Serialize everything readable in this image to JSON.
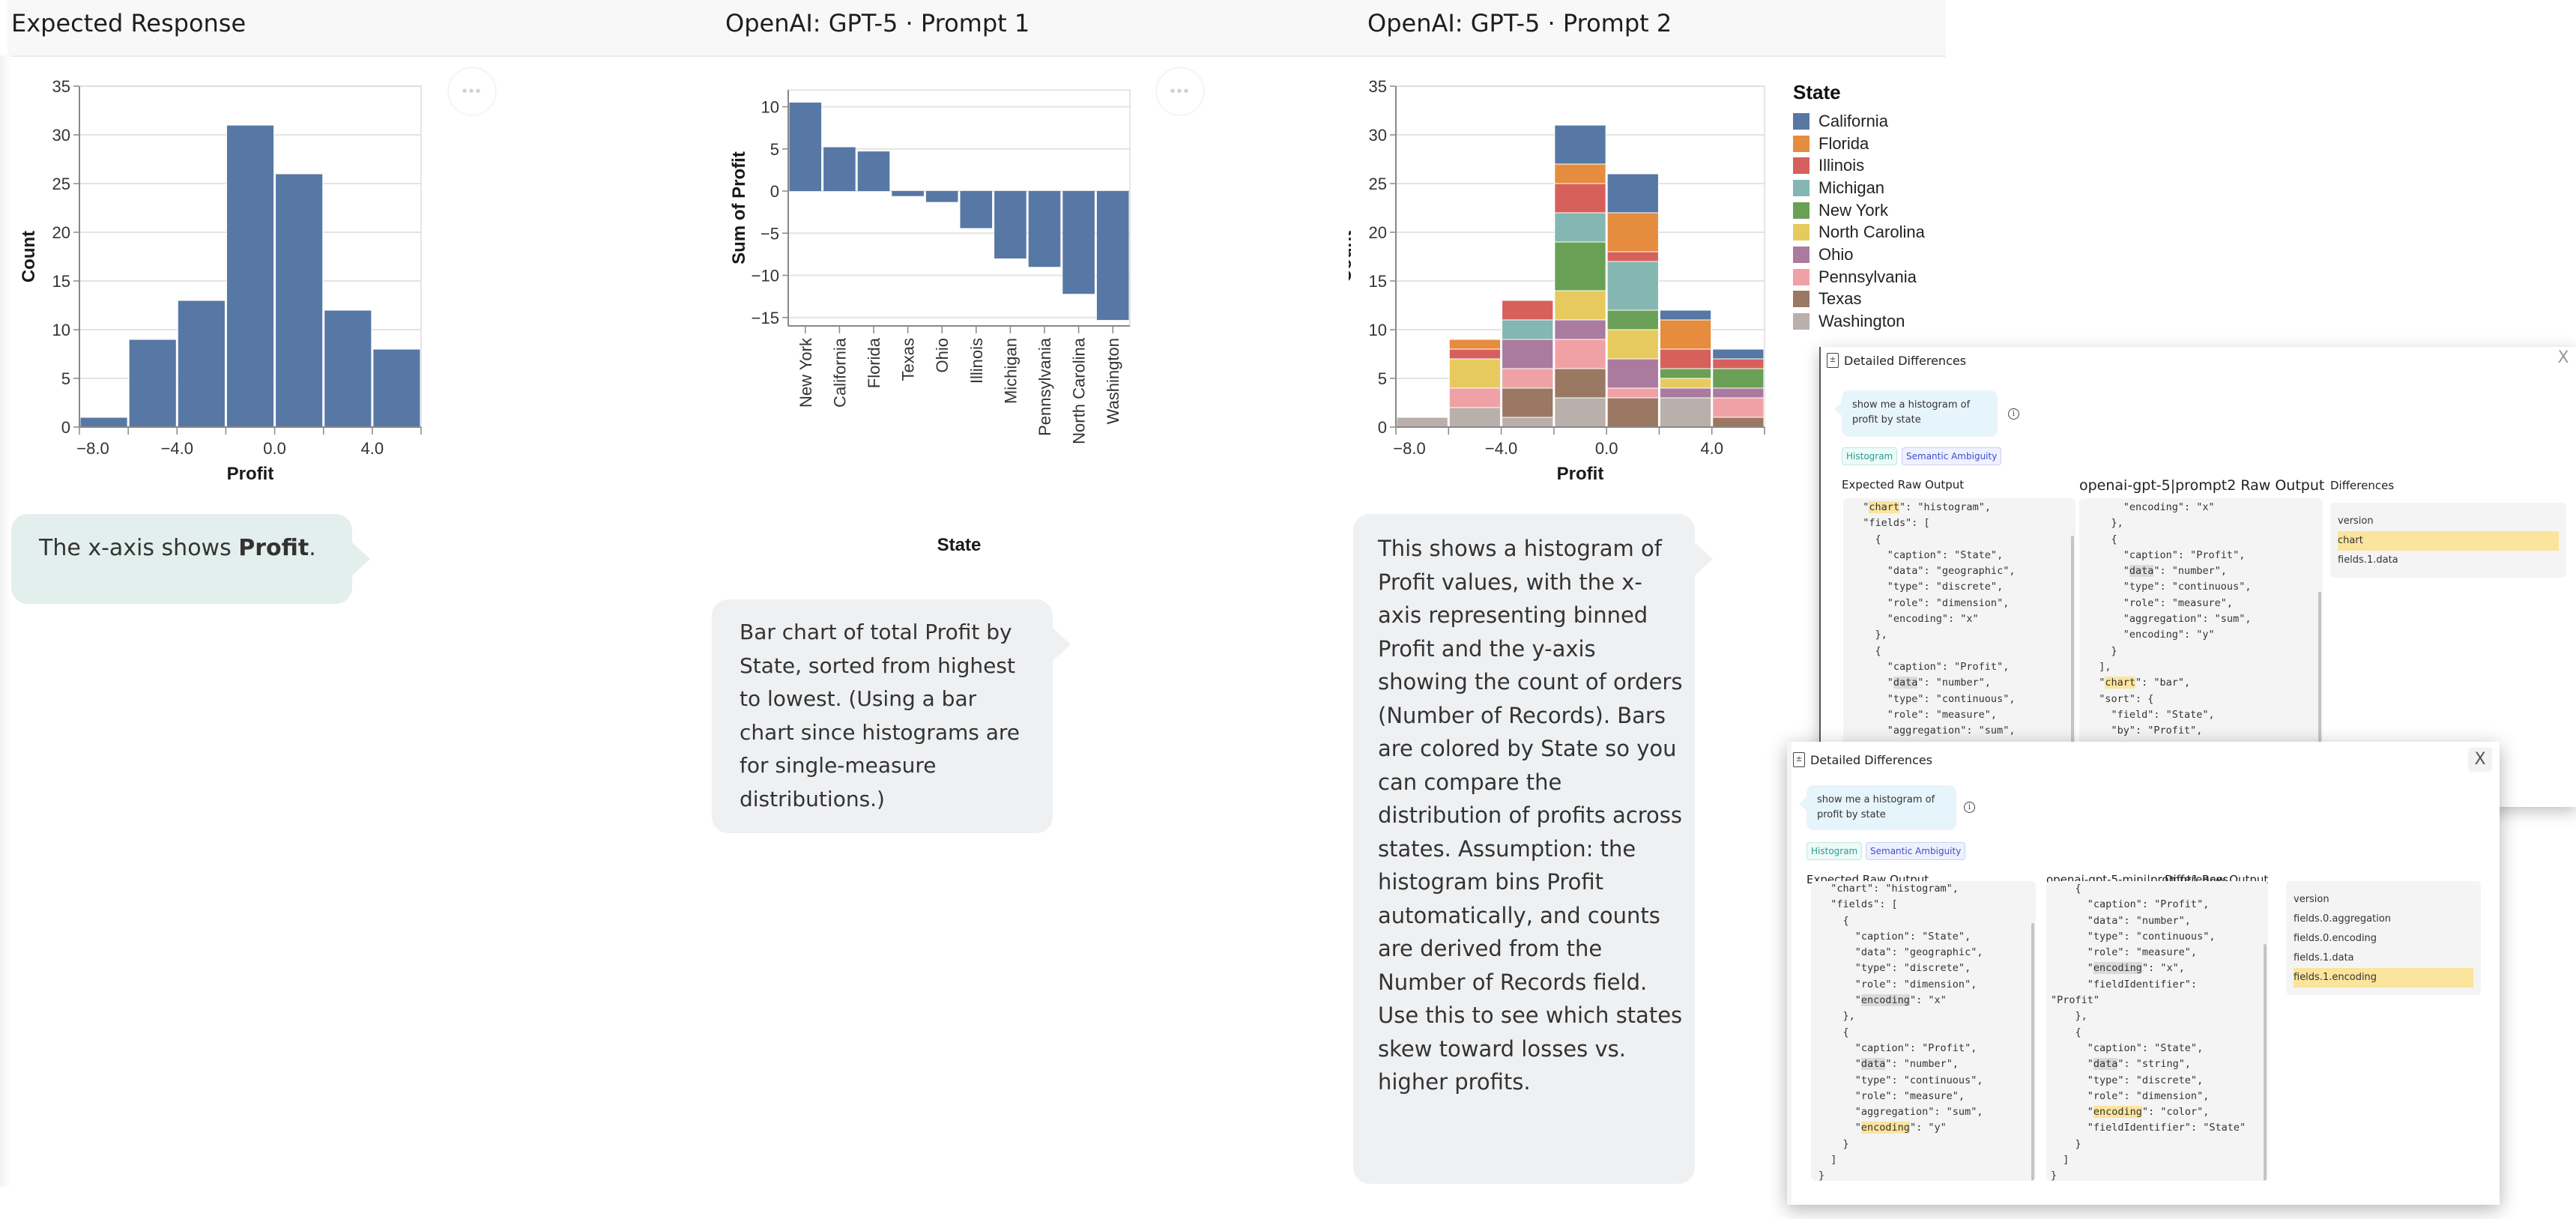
{
  "columns": [
    {
      "title": "Expected Response"
    },
    {
      "title": "OpenAI: GPT-5 · Prompt 1"
    },
    {
      "title": "OpenAI: GPT-5 · Prompt 2"
    }
  ],
  "more_button": {
    "icon": "ellipsis-icon",
    "label": "•••"
  },
  "bubbles": {
    "expected": {
      "prefix": "The x-axis shows ",
      "bold": "Profit",
      "suffix": "."
    },
    "prompt1": "Bar chart of total Profit by State, sorted from highest to lowest. (Using a bar chart since histograms are for single-measure distributions.)",
    "prompt2": "This shows a histogram of Profit values, with the x-axis representing binned Profit and the y-axis showing the count of orders (Number of Records). Bars are colored by State so you can compare the distribution of profits across states. Assumption: the histogram bins Profit automatically, and counts are derived from the Number of Records field. Use this to see which states skew toward losses vs. higher profits."
  },
  "chart_data": [
    {
      "id": "expected",
      "type": "bar",
      "title": "",
      "xlabel": "Profit",
      "ylabel": "Count",
      "bins": [
        [
          -8,
          -6
        ],
        [
          -6,
          -4
        ],
        [
          -4,
          -2
        ],
        [
          -2,
          0
        ],
        [
          0,
          2
        ],
        [
          2,
          4
        ],
        [
          4,
          6
        ]
      ],
      "values": [
        1,
        9,
        13,
        31,
        26,
        12,
        8
      ],
      "xlim": [
        -8,
        6
      ],
      "ylim": [
        0,
        35
      ],
      "xticks": [
        "-8.0",
        "-4.0",
        "0.0",
        "4.0"
      ],
      "xtick_values": [
        -8,
        -4,
        0,
        4
      ],
      "yticks": [
        0,
        5,
        10,
        15,
        20,
        25,
        30,
        35
      ],
      "grid": true,
      "color": "#5778a4"
    },
    {
      "id": "prompt1",
      "type": "bar",
      "title": "",
      "xlabel": "State",
      "ylabel": "Sum of Profit",
      "categories": [
        "New York",
        "California",
        "Florida",
        "Texas",
        "Ohio",
        "Illinois",
        "Michigan",
        "Pennsylvania",
        "North Carolina",
        "Washington"
      ],
      "values": [
        10.5,
        5.2,
        4.7,
        -0.6,
        -1.3,
        -4.4,
        -8.0,
        -9.0,
        -12.2,
        -15.3
      ],
      "ylim": [
        -16,
        12
      ],
      "yticks": [
        -15,
        -10,
        -5,
        0,
        5,
        10
      ],
      "grid": true,
      "color": "#5778a4"
    },
    {
      "id": "prompt2",
      "type": "bar",
      "stacked": true,
      "title": "",
      "xlabel": "Profit",
      "ylabel": "Count",
      "bins": [
        [
          -8,
          -6
        ],
        [
          -6,
          -4
        ],
        [
          -4,
          -2
        ],
        [
          -2,
          0
        ],
        [
          0,
          2
        ],
        [
          2,
          4
        ],
        [
          4,
          6
        ]
      ],
      "xlim": [
        -8,
        6
      ],
      "ylim": [
        0,
        35
      ],
      "xticks": [
        "-8.0",
        "-4.0",
        "0.0",
        "4.0"
      ],
      "xtick_values": [
        -8,
        -4,
        0,
        4
      ],
      "yticks": [
        0,
        5,
        10,
        15,
        20,
        25,
        30,
        35
      ],
      "grid": true,
      "legend": {
        "title": "State",
        "position": "right"
      },
      "series": [
        {
          "name": "Washington",
          "color": "#b9b0ab",
          "values": [
            1,
            2,
            1,
            3,
            0,
            3,
            0
          ]
        },
        {
          "name": "Texas",
          "color": "#9b7862",
          "values": [
            0,
            0,
            3,
            3,
            3,
            0,
            1
          ]
        },
        {
          "name": "Pennsylvania",
          "color": "#f0a1a5",
          "values": [
            0,
            2,
            2,
            3,
            1,
            0,
            2
          ]
        },
        {
          "name": "Ohio",
          "color": "#ab7a9f",
          "values": [
            0,
            0,
            3,
            2,
            3,
            1,
            1
          ]
        },
        {
          "name": "North Carolina",
          "color": "#e7ca5e",
          "values": [
            0,
            3,
            0,
            3,
            3,
            1,
            0
          ]
        },
        {
          "name": "New York",
          "color": "#6aa055",
          "values": [
            0,
            0,
            0,
            5,
            2,
            1,
            2
          ]
        },
        {
          "name": "Michigan",
          "color": "#84b6b2",
          "values": [
            0,
            0,
            2,
            3,
            5,
            0,
            0
          ]
        },
        {
          "name": "Illinois",
          "color": "#d7605d",
          "values": [
            0,
            1,
            2,
            3,
            1,
            2,
            1
          ]
        },
        {
          "name": "Florida",
          "color": "#e58c3e",
          "values": [
            0,
            1,
            0,
            2,
            4,
            3,
            0
          ]
        },
        {
          "name": "California",
          "color": "#5778a4",
          "values": [
            0,
            0,
            0,
            4,
            4,
            1,
            1
          ]
        }
      ],
      "legend_order": [
        "California",
        "Florida",
        "Illinois",
        "Michigan",
        "New York",
        "North Carolina",
        "Ohio",
        "Pennsylvania",
        "Texas",
        "Washington"
      ]
    }
  ],
  "panels": {
    "upper": {
      "title": "Detailed Differences",
      "prompt": "show me a histogram of profit by state",
      "tags": [
        "Histogram",
        "Semantic Ambiguity"
      ],
      "expected_label": "Expected Raw Output",
      "model_label": "openai-gpt-5|prompt2 Raw Output",
      "differences_label": "Differences",
      "expected_code": [
        {
          "t": "  \""
        },
        {
          "h": "y",
          "t": "chart"
        },
        {
          "t": "\": \"histogram\",\n  \"fields\": [\n    {\n      \"caption\": \"State\",\n      \"data\": \"geographic\",\n      \"type\": \"discrete\",\n      \"role\": \"dimension\",\n      \"encoding\": \"x\"\n    },\n    {\n      \"caption\": \"Profit\",\n      \""
        },
        {
          "h": "g",
          "t": "data"
        },
        {
          "t": "\": \"number\",\n      \"type\": \"continuous\",\n      \"role\": \"measure\",\n      \"aggregation\": \"sum\",\n      \"encoding\": \"y\""
        }
      ],
      "model_code": [
        {
          "t": "      \"encoding\": \"x\"\n    },\n    {\n      \"caption\": \"Profit\",\n      \""
        },
        {
          "h": "g",
          "t": "data"
        },
        {
          "t": "\": \"number\",\n      \"type\": \"continuous\",\n      \"role\": \"measure\",\n      \"aggregation\": \"sum\",\n      \"encoding\": \"y\"\n    }\n  ],\n  \""
        },
        {
          "h": "y",
          "t": "chart"
        },
        {
          "t": "\": \"bar\",\n  \"sort\": {\n    \"field\": \"State\",\n    \"by\": \"Profit\",\n    \"aggregation\": \"sum\","
        }
      ],
      "differences": [
        {
          "label": "version",
          "selected": false
        },
        {
          "label": "chart",
          "selected": true
        },
        {
          "label": "fields.1.data",
          "selected": false
        }
      ],
      "close_label": "X"
    },
    "lower": {
      "title": "Detailed Differences",
      "prompt": "show me a histogram of profit by state",
      "tags": [
        "Histogram",
        "Semantic Ambiguity"
      ],
      "expected_label": "Expected Raw Output",
      "model_label": "openai-gpt-5-mini|prompt1 Raw Output",
      "differences_label": "Differences",
      "expected_code": [
        {
          "t": "  \"chart\": \"histogram\",\n  \"fields\": [\n    {\n      \"caption\": \"State\",\n      \"data\": \"geographic\",\n      \"type\": \"discrete\",\n      \"role\": \"dimension\",\n      \""
        },
        {
          "h": "g",
          "t": "encoding"
        },
        {
          "t": "\": \"x\"\n    },\n    {\n      \"caption\": \"Profit\",\n      \""
        },
        {
          "h": "g",
          "t": "data"
        },
        {
          "t": "\": \"number\",\n      \"type\": \"continuous\",\n      \"role\": \"measure\",\n      \"aggregation\": \"sum\",\n      \""
        },
        {
          "h": "y",
          "t": "encoding"
        },
        {
          "t": "\": \"y\"\n    }\n  ]\n}"
        }
      ],
      "model_code": [
        {
          "t": "    {\n      \"caption\": \"Profit\",\n      \"data\": \"number\",\n      \"type\": \"continuous\",\n      \"role\": \"measure\",\n      \""
        },
        {
          "h": "g",
          "t": "encoding"
        },
        {
          "t": "\": \"x\",\n      \"fieldIdentifier\":\n\"Profit\"\n    },\n    {\n      \"caption\": \"State\",\n      \""
        },
        {
          "h": "g",
          "t": "data"
        },
        {
          "t": "\": \"string\",\n      \"type\": \"discrete\",\n      \"role\": \"dimension\",\n      \""
        },
        {
          "h": "y",
          "t": "encoding"
        },
        {
          "t": "\": \"color\",\n      \"fieldIdentifier\": \"State\"\n    }\n  ]\n}"
        }
      ],
      "differences": [
        {
          "label": "version",
          "selected": false
        },
        {
          "label": "fields.0.aggregation",
          "selected": false
        },
        {
          "label": "fields.0.encoding",
          "selected": false
        },
        {
          "label": "fields.1.data",
          "selected": false
        },
        {
          "label": "fields.1.encoding",
          "selected": true
        }
      ],
      "close_label": "X"
    }
  }
}
